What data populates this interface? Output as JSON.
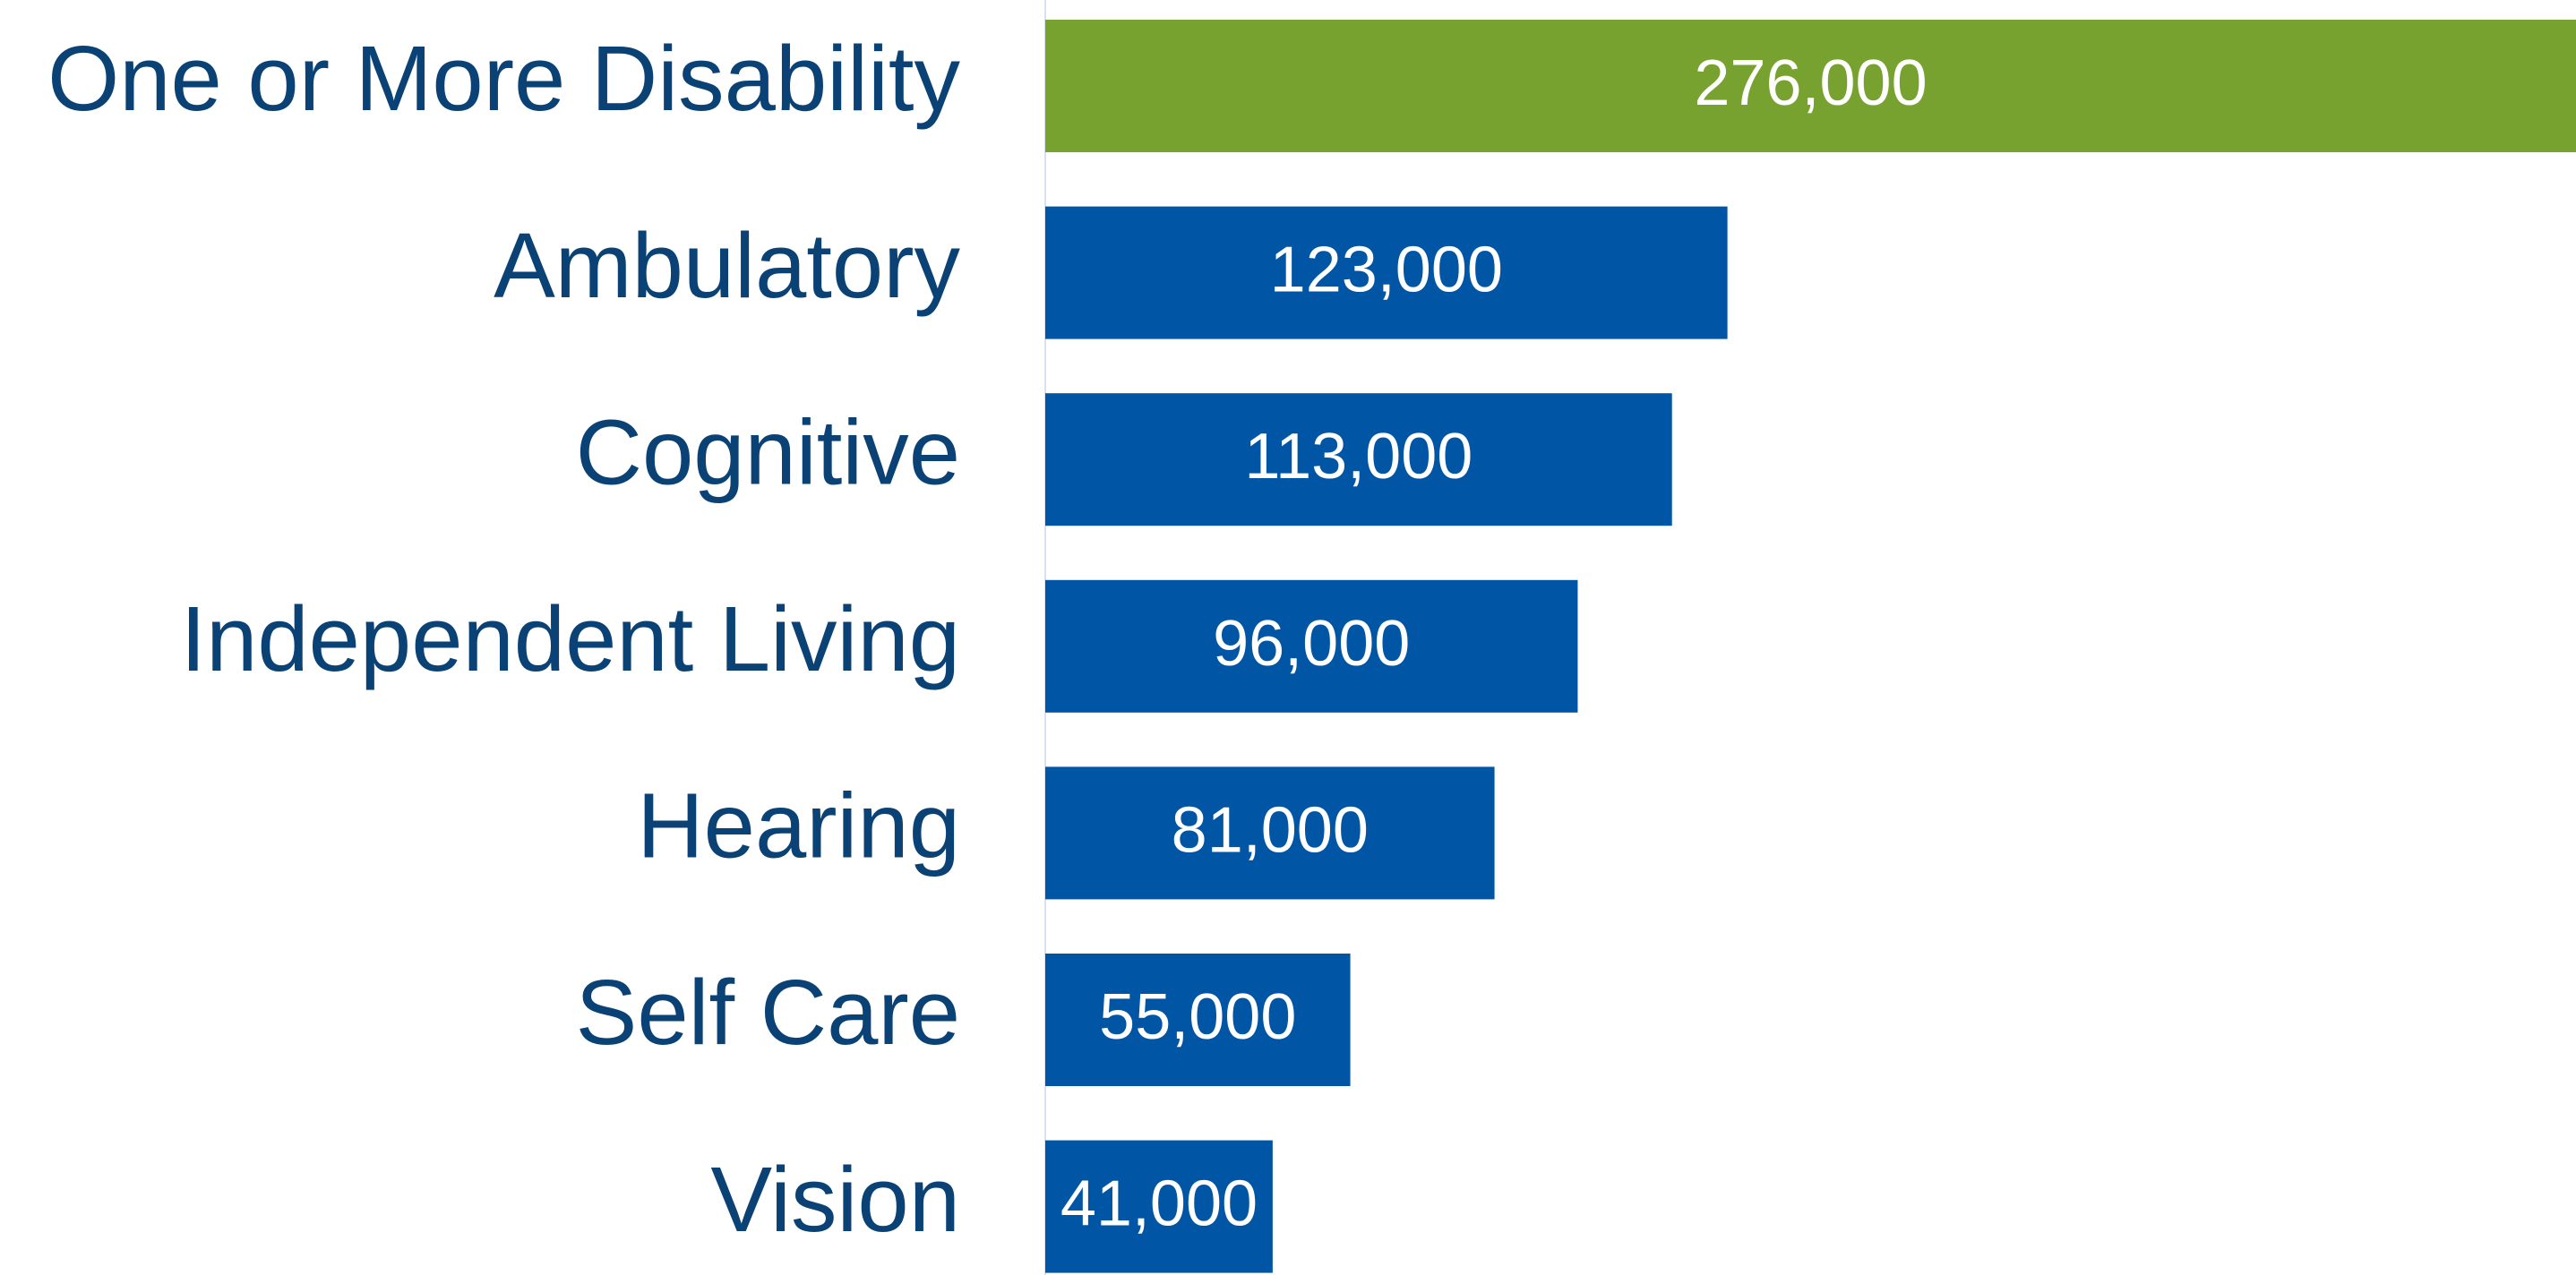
{
  "chart_data": {
    "type": "bar",
    "orientation": "horizontal",
    "categories": [
      "One or More Disability",
      "Ambulatory",
      "Cognitive",
      "Independent Living",
      "Hearing",
      "Self Care",
      "Vision"
    ],
    "values": [
      276000,
      123000,
      113000,
      96000,
      81000,
      55000,
      41000
    ],
    "value_labels": [
      "276,000",
      "123,000",
      "113,000",
      "96,000",
      "81,000",
      "55,000",
      "41,000"
    ],
    "colors": [
      "#78a22f",
      "#0055a5",
      "#0055a5",
      "#0055a5",
      "#0055a5",
      "#0055a5",
      "#0055a5"
    ],
    "xlim": [
      0,
      276000
    ]
  }
}
